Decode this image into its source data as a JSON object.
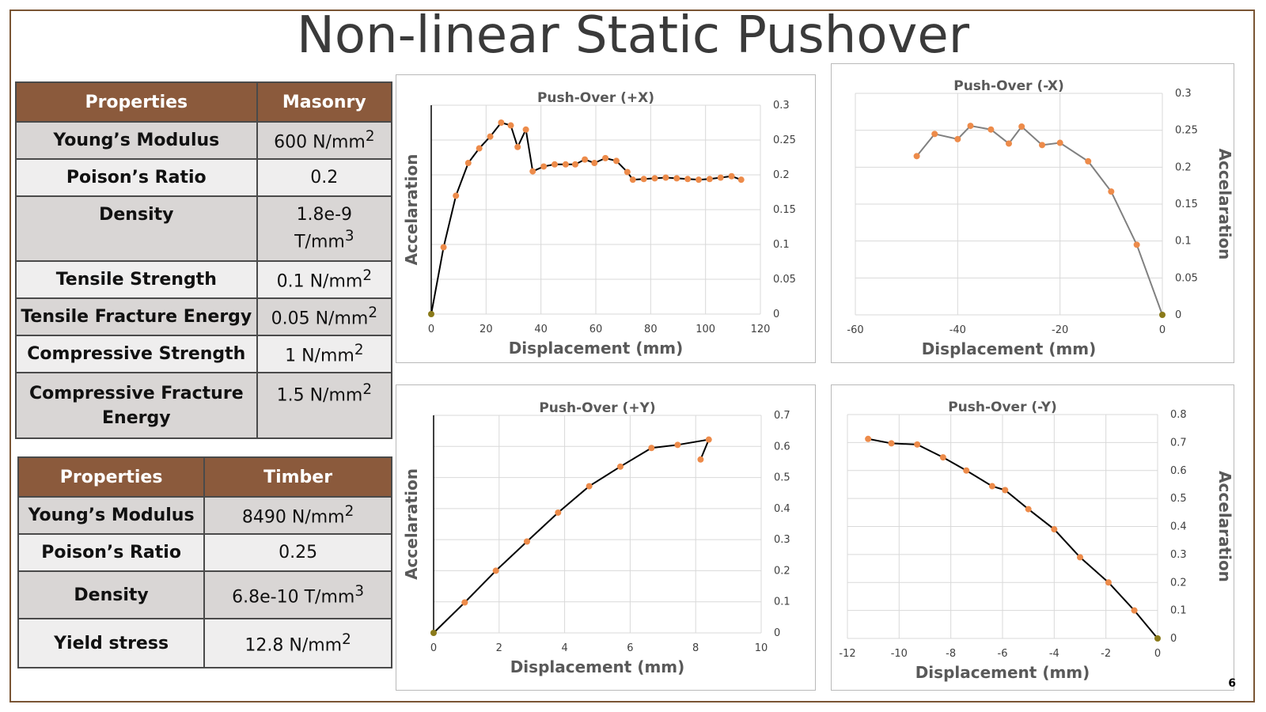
{
  "slide": {
    "title": "Non-linear Static Pushover",
    "page_number": "6"
  },
  "masonry_table": {
    "headers": [
      "Properties",
      "Masonry"
    ],
    "rows": [
      {
        "property": "Young’s Modulus",
        "value": "600 N/mm",
        "sup": "2"
      },
      {
        "property": "Poison’s Ratio",
        "value": "0.2",
        "sup": ""
      },
      {
        "property": "Density",
        "value": "1.8e-9",
        "value2": "T/mm",
        "sup": "3"
      },
      {
        "property": "Tensile Strength",
        "value": "0.1 N/mm",
        "sup": "2"
      },
      {
        "property": "Tensile Fracture Energy",
        "value": "0.05 N/mm",
        "sup": "2"
      },
      {
        "property": "Compressive Strength",
        "value": "1 N/mm",
        "sup": "2"
      },
      {
        "property": "Compressive Fracture",
        "property2": "Energy",
        "value": "1.5 N/mm",
        "sup": "2"
      }
    ]
  },
  "timber_table": {
    "headers": [
      "Properties",
      "Timber"
    ],
    "rows": [
      {
        "property": "Young’s Modulus",
        "value": "8490 N/mm",
        "sup": "2"
      },
      {
        "property": "Poison’s Ratio",
        "value": "0.25",
        "sup": ""
      },
      {
        "property": "Density",
        "value": "6.8e-10 T/mm",
        "sup": "3"
      },
      {
        "property": "Yield stress",
        "value": "12.8  N/mm",
        "sup": "2"
      }
    ]
  },
  "colors": {
    "table_header": "#8b5a3c",
    "frame": "#7a5534",
    "marker": "#ed8b4a",
    "line_black": "#000000",
    "line_grey": "#808080",
    "grid": "#d9d9d9"
  },
  "chart_data": [
    {
      "type": "line",
      "title": "Push-Over (+X)",
      "xlabel": "Displacement (mm)",
      "ylabel": "Accelaration",
      "xlim": [
        0,
        120
      ],
      "ylim": [
        0,
        0.3
      ],
      "xticks": [
        0,
        20,
        40,
        60,
        80,
        100,
        120
      ],
      "yticks": [
        0,
        0.05,
        0.1,
        0.15,
        0.2,
        0.25,
        0.3
      ],
      "ytick_labels": [
        "0",
        "0.05",
        "0.1",
        "0.15",
        "0.2",
        "0.25",
        "0.3"
      ],
      "y_axis_side": "right",
      "grid": true,
      "line_color": "#000000",
      "x": [
        0,
        4.5,
        9,
        13.5,
        17.5,
        21.5,
        25.5,
        29,
        31.5,
        34.5,
        37,
        41,
        45,
        49,
        52.5,
        56,
        59.5,
        63.5,
        67.5,
        71.5,
        73.5,
        77.5,
        81.5,
        85.5,
        89.5,
        93.5,
        97.5,
        101.5,
        105.5,
        109.5,
        113
      ],
      "y": [
        0,
        0.096,
        0.17,
        0.217,
        0.238,
        0.255,
        0.275,
        0.271,
        0.24,
        0.265,
        0.205,
        0.212,
        0.215,
        0.215,
        0.215,
        0.222,
        0.217,
        0.224,
        0.22,
        0.204,
        0.193,
        0.194,
        0.195,
        0.196,
        0.195,
        0.194,
        0.193,
        0.194,
        0.196,
        0.198,
        0.193
      ]
    },
    {
      "type": "line",
      "title": "Push-Over (-X)",
      "xlabel": "Displacement (mm)",
      "ylabel": "Accelaration",
      "xlim": [
        -60,
        0
      ],
      "ylim": [
        0,
        0.3
      ],
      "xticks": [
        -60,
        -40,
        -20,
        0
      ],
      "yticks": [
        0,
        0.05,
        0.1,
        0.15,
        0.2,
        0.25,
        0.3
      ],
      "ytick_labels": [
        "0",
        "0.05",
        "0.1",
        "0.15",
        "0.2",
        "0.25",
        "0.3"
      ],
      "y_axis_side": "right",
      "grid": true,
      "line_color": "#808080",
      "x": [
        -48,
        -44.5,
        -40,
        -37.5,
        -33.5,
        -30,
        -27.5,
        -23.5,
        -20,
        -14.5,
        -10,
        -5,
        0
      ],
      "y": [
        0.215,
        0.245,
        0.238,
        0.256,
        0.251,
        0.232,
        0.255,
        0.23,
        0.233,
        0.208,
        0.167,
        0.095,
        0
      ]
    },
    {
      "type": "line",
      "title": "Push-Over (+Y)",
      "xlabel": "Displacement (mm)",
      "ylabel": "Accelaration",
      "xlim": [
        0,
        10
      ],
      "ylim": [
        0,
        0.7
      ],
      "xticks": [
        0,
        2,
        4,
        6,
        8,
        10
      ],
      "yticks": [
        0,
        0.1,
        0.2,
        0.3,
        0.4,
        0.5,
        0.6,
        0.7
      ],
      "ytick_labels": [
        "0",
        "0.1",
        "0.2",
        "0.3",
        "0.4",
        "0.5",
        "0.6",
        "0.7"
      ],
      "y_axis_side": "right",
      "grid": true,
      "line_color": "#000000",
      "x": [
        0,
        0.95,
        1.9,
        2.85,
        3.8,
        4.75,
        5.7,
        6.65,
        7.45,
        8.4,
        8.15
      ],
      "y": [
        0,
        0.098,
        0.2,
        0.294,
        0.387,
        0.472,
        0.535,
        0.595,
        0.605,
        0.622,
        0.558
      ]
    },
    {
      "type": "line",
      "title": "Push-Over (-Y)",
      "xlabel": "Displacement (mm)",
      "ylabel": "Accelaration",
      "xlim": [
        -12,
        0
      ],
      "ylim": [
        0,
        0.8
      ],
      "xticks": [
        -12,
        -10,
        -8,
        -6,
        -4,
        -2,
        0
      ],
      "yticks": [
        0,
        0.1,
        0.2,
        0.3,
        0.4,
        0.5,
        0.6,
        0.7,
        0.8
      ],
      "ytick_labels": [
        "0",
        "0.1",
        "0.2",
        "0.3",
        "0.4",
        "0.5",
        "0.6",
        "0.7",
        "0.8"
      ],
      "y_axis_side": "right",
      "grid": true,
      "line_color": "#000000",
      "x": [
        -11.2,
        -10.3,
        -9.3,
        -8.3,
        -7.4,
        -6.4,
        -5.9,
        -5.0,
        -4.0,
        -3.0,
        -1.9,
        -0.9,
        0
      ],
      "y": [
        0.713,
        0.697,
        0.693,
        0.647,
        0.6,
        0.544,
        0.53,
        0.462,
        0.39,
        0.29,
        0.2,
        0.1,
        0
      ]
    }
  ]
}
